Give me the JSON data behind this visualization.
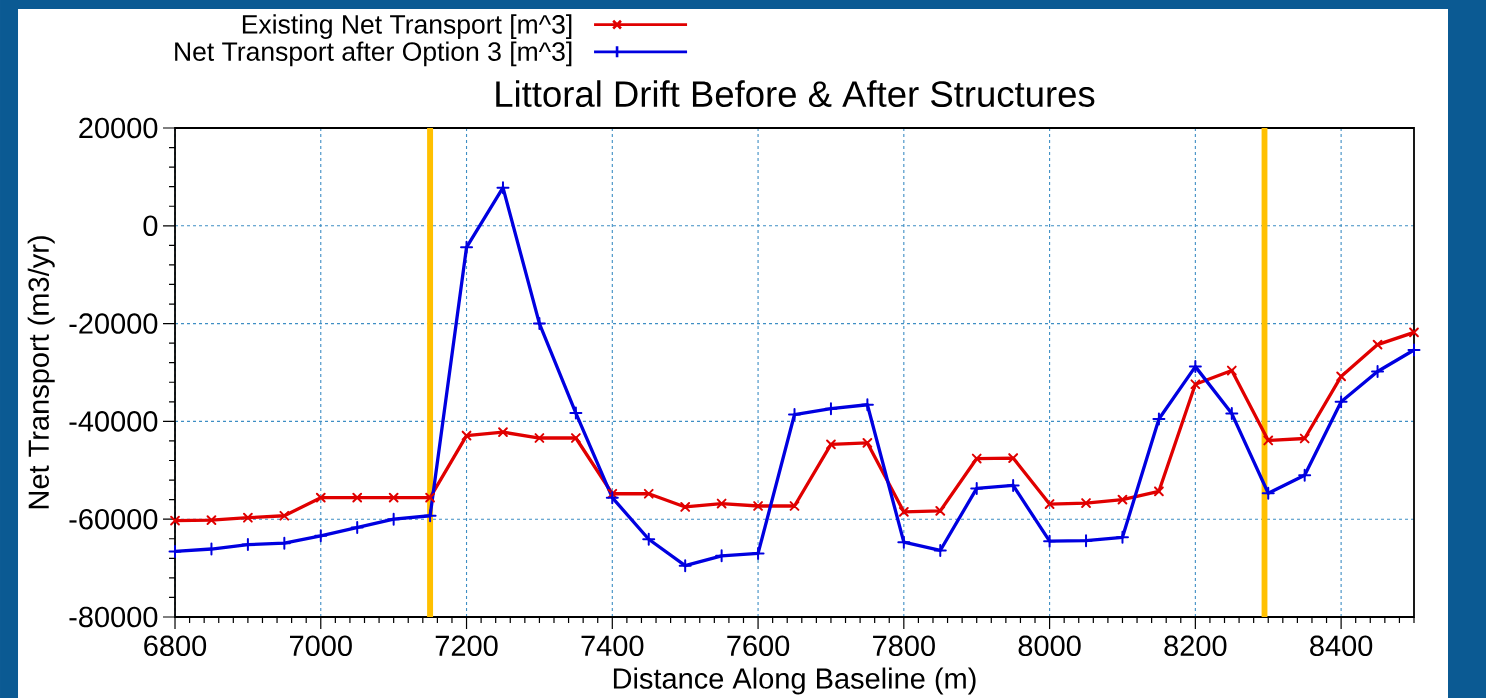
{
  "chart_data": {
    "type": "line",
    "title": "Littoral Drift Before & After Structures",
    "xlabel": "Distance Along Baseline (m)",
    "ylabel": "Net Transport (m3/yr)",
    "x": [
      6800,
      6850,
      6900,
      6950,
      7000,
      7050,
      7100,
      7150,
      7200,
      7250,
      7300,
      7350,
      7400,
      7450,
      7500,
      7550,
      7600,
      7650,
      7700,
      7750,
      7800,
      7850,
      7900,
      7950,
      8000,
      8050,
      8100,
      8150,
      8200,
      8250,
      8300,
      8350,
      8400,
      8450,
      8500
    ],
    "series": [
      {
        "name": "Existing Net Transport [m^3]",
        "color": "#e00000",
        "marker": "cross",
        "values": [
          -60300,
          -60200,
          -59700,
          -59300,
          -55600,
          -55600,
          -55600,
          -55600,
          -42900,
          -42200,
          -43400,
          -43400,
          -54800,
          -54800,
          -57500,
          -56800,
          -57300,
          -57300,
          -44700,
          -44400,
          -58500,
          -58300,
          -47600,
          -47500,
          -56900,
          -56700,
          -56000,
          -54300,
          -32400,
          -29600,
          -43900,
          -43500,
          -30800,
          -24300,
          -21800
        ]
      },
      {
        "name": "Net Transport after Option 3 [m^3]",
        "color": "#0000e0",
        "marker": "plus",
        "values": [
          -66600,
          -66100,
          -65200,
          -64900,
          -63400,
          -61700,
          -60000,
          -59300,
          -4400,
          7800,
          -20000,
          -38300,
          -55600,
          -64100,
          -69500,
          -67500,
          -67000,
          -38600,
          -37400,
          -36600,
          -64700,
          -66400,
          -53700,
          -53100,
          -64500,
          -64400,
          -63700,
          -39500,
          -28800,
          -38400,
          -54700,
          -51000,
          -36000,
          -29800,
          -25400
        ]
      }
    ],
    "xlim": [
      6800,
      8500
    ],
    "ylim": [
      -80000,
      20000
    ],
    "xticks": [
      6800,
      7000,
      7200,
      7400,
      7600,
      7800,
      8000,
      8200,
      8400
    ],
    "yticks": [
      -80000,
      -60000,
      -40000,
      -20000,
      0,
      20000
    ],
    "grid": true,
    "legend": "top left",
    "ref_lines": [
      {
        "axis": "x",
        "value": 7150,
        "color": "#ffc000"
      },
      {
        "axis": "x",
        "value": 8295,
        "color": "#ffc000"
      }
    ]
  }
}
